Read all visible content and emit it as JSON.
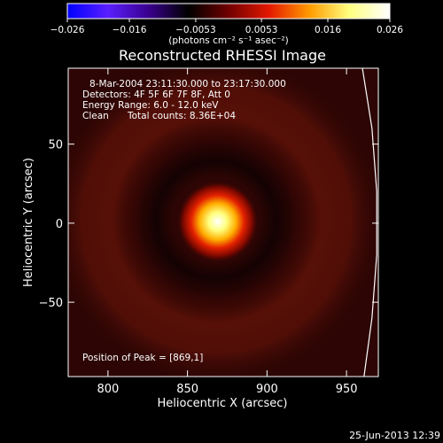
{
  "chart_data": {
    "type": "heatmap",
    "title": "Reconstructed RHESSI Image",
    "xlabel": "Heliocentric X (arcsec)",
    "ylabel": "Heliocentric Y (arcsec)",
    "xlim": [
      775,
      970
    ],
    "ylim": [
      -97,
      98
    ],
    "x_ticks": [
      800,
      850,
      900,
      950
    ],
    "y_ticks": [
      50,
      0,
      -50
    ],
    "x_tick_labels": [
      "800",
      "850",
      "900",
      "950"
    ],
    "y_tick_labels": [
      "50",
      "0",
      "−50"
    ],
    "colorbar": {
      "range": [
        -0.026,
        0.026
      ],
      "ticks": [
        -0.026,
        -0.016,
        -0.0053,
        0.0053,
        0.016,
        0.026
      ],
      "tick_labels": [
        "−0.026",
        "−0.016",
        "−0.0053",
        "0.0053",
        "0.016",
        "0.026"
      ],
      "label": "(photons cm⁻² s⁻¹ asec⁻²)"
    },
    "peak": {
      "x": 869,
      "y": 1
    },
    "limb_arc": [
      {
        "y": 98,
        "x": 960
      },
      {
        "y": 60,
        "x": 966
      },
      {
        "y": 20,
        "x": 969
      },
      {
        "y": -20,
        "x": 969
      },
      {
        "y": -60,
        "x": 966
      },
      {
        "y": -97,
        "x": 961
      }
    ],
    "annotations": {
      "time": "8-Mar-2004 23:11:30.000 to 23:17:30.000",
      "detectors": "Detectors: 4F 5F 6F 7F 8F, Att 0",
      "energy": "Energy Range: 6.0 - 12.0 keV",
      "method": "Clean",
      "counts": "Total counts: 8.36E+04",
      "peak_text": "Position of Peak = [869,1]"
    },
    "grid": false
  },
  "footer": {
    "timestamp": "25-Jun-2013 12:39"
  },
  "colors": {
    "colormap": [
      "#0000ff",
      "#5a1fff",
      "#3a0090",
      "#000000",
      "#700000",
      "#e31800",
      "#ff9a00",
      "#ffff80",
      "#ffffff"
    ],
    "background": "#000000"
  }
}
